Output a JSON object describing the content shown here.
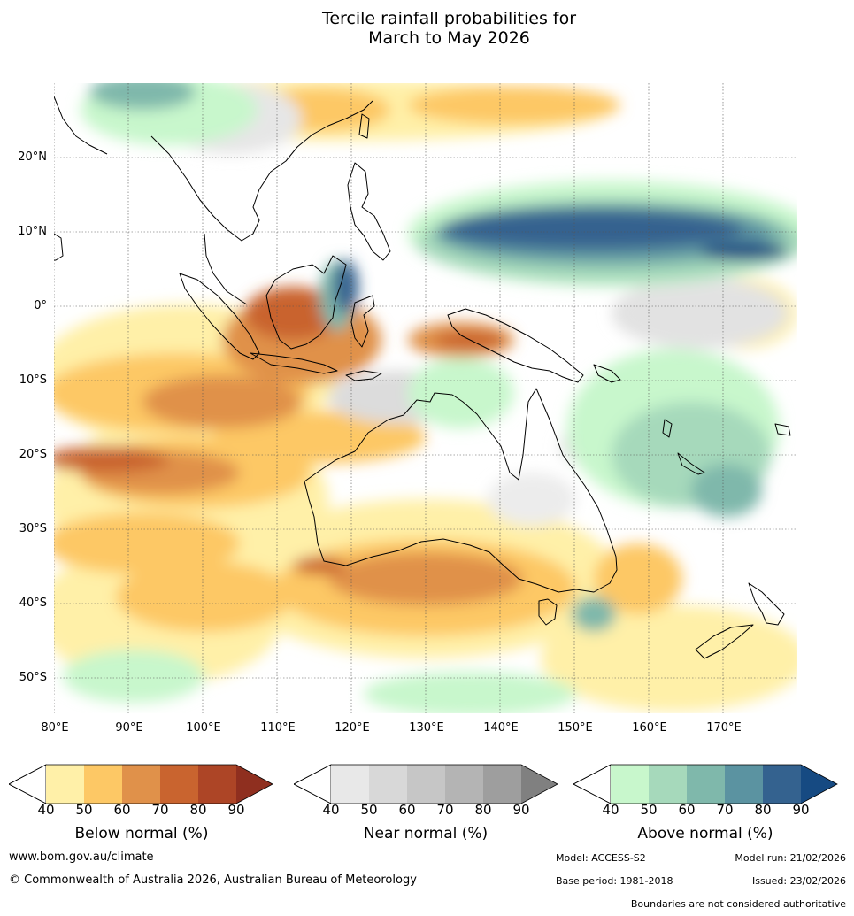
{
  "title": {
    "line1": "Tercile rainfall probabilities for",
    "line2": "March to May 2026"
  },
  "map": {
    "lat_ticks": [
      "20°N",
      "10°N",
      "0°",
      "10°S",
      "20°S",
      "30°S",
      "40°S",
      "50°S"
    ],
    "lon_ticks": [
      "80°E",
      "90°E",
      "100°E",
      "110°E",
      "120°E",
      "130°E",
      "140°E",
      "150°E",
      "160°E",
      "170°E"
    ],
    "extent": {
      "lon_min": 80,
      "lon_max": 180,
      "lat_min": -55,
      "lat_max": 30
    }
  },
  "legends": {
    "below": {
      "title": "Below normal (%)",
      "ticks": [
        "40",
        "50",
        "60",
        "70",
        "80",
        "90"
      ],
      "colors": [
        "#fff0a8",
        "#fdc865",
        "#e0914a",
        "#c9642f",
        "#ad4526",
        "#8f2f1f"
      ]
    },
    "near": {
      "title": "Near normal (%)",
      "ticks": [
        "40",
        "50",
        "60",
        "70",
        "80",
        "90"
      ],
      "colors": [
        "#e8e8e8",
        "#d8d8d8",
        "#c6c6c6",
        "#b4b4b4",
        "#9e9e9e",
        "#808080"
      ]
    },
    "above": {
      "title": "Above normal (%)",
      "ticks": [
        "40",
        "50",
        "60",
        "70",
        "80",
        "90"
      ],
      "colors": [
        "#c8f7cc",
        "#a6d9bb",
        "#7fb8ab",
        "#5b93a1",
        "#34628f",
        "#164a82"
      ]
    }
  },
  "footer": {
    "website": "www.bom.gov.au/climate",
    "copyright": "© Commonwealth of Australia 2026, Australian Bureau of Meteorology",
    "model": "Model: ACCESS-S2",
    "model_run": "Model run: 21/02/2026",
    "base_period": "Base period: 1981-2018",
    "issued": "Issued: 23/02/2026",
    "disclaimer": "Boundaries are not considered authoritative"
  }
}
